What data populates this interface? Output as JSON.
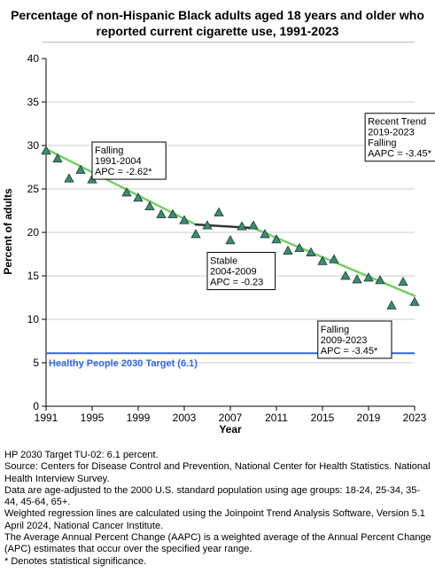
{
  "chart_data": {
    "type": "scatter",
    "title": "Percentage of non-Hispanic Black adults aged 18 years and older who reported current cigarette use, 1991-2023",
    "xlabel": "Year",
    "ylabel": "Percent of adults",
    "xlim": [
      1991,
      2023
    ],
    "ylim": [
      0,
      40
    ],
    "x_ticks": [
      1991,
      1995,
      1999,
      2003,
      2007,
      2011,
      2015,
      2019,
      2023
    ],
    "y_ticks": [
      0,
      5,
      10,
      15,
      20,
      25,
      30,
      35,
      40
    ],
    "grid": "horizontal",
    "points": [
      {
        "x": 1991,
        "y": 29.4
      },
      {
        "x": 1992,
        "y": 28.5
      },
      {
        "x": 1993,
        "y": 26.2
      },
      {
        "x": 1994,
        "y": 27.2
      },
      {
        "x": 1995,
        "y": 26.1
      },
      {
        "x": 1997,
        "y": 26.7
      },
      {
        "x": 1998,
        "y": 24.6
      },
      {
        "x": 1999,
        "y": 24.0
      },
      {
        "x": 2000,
        "y": 23.0
      },
      {
        "x": 2001,
        "y": 22.1
      },
      {
        "x": 2002,
        "y": 22.1
      },
      {
        "x": 2003,
        "y": 21.4
      },
      {
        "x": 2004,
        "y": 19.8
      },
      {
        "x": 2005,
        "y": 20.8
      },
      {
        "x": 2006,
        "y": 22.3
      },
      {
        "x": 2007,
        "y": 19.1
      },
      {
        "x": 2008,
        "y": 20.7
      },
      {
        "x": 2009,
        "y": 20.8
      },
      {
        "x": 2010,
        "y": 19.8
      },
      {
        "x": 2011,
        "y": 19.2
      },
      {
        "x": 2012,
        "y": 17.9
      },
      {
        "x": 2013,
        "y": 18.2
      },
      {
        "x": 2014,
        "y": 17.7
      },
      {
        "x": 2015,
        "y": 16.7
      },
      {
        "x": 2016,
        "y": 16.9
      },
      {
        "x": 2017,
        "y": 15.0
      },
      {
        "x": 2018,
        "y": 14.6
      },
      {
        "x": 2019,
        "y": 14.8
      },
      {
        "x": 2020,
        "y": 14.5
      },
      {
        "x": 2021,
        "y": 11.6
      },
      {
        "x": 2022,
        "y": 14.3
      },
      {
        "x": 2023,
        "y": 12.0
      }
    ],
    "trend_segments": [
      {
        "label": "Falling",
        "period": "1991-2004",
        "x": [
          1991,
          2004
        ],
        "y": [
          29.6,
          20.9
        ],
        "color": "#77cc66"
      },
      {
        "label": "Stable",
        "period": "2004-2009",
        "x": [
          2004,
          2009
        ],
        "y": [
          20.9,
          20.5
        ],
        "color": "#333333"
      },
      {
        "label": "Falling",
        "period": "2009-2023",
        "x": [
          2009,
          2023
        ],
        "y": [
          20.5,
          12.7
        ],
        "color": "#77cc66"
      }
    ],
    "target": {
      "value": 6.1,
      "label": "Healthy People 2030 Target (6.1)",
      "color": "#3366dd"
    },
    "annotations": [
      {
        "lines": [
          "Falling",
          "1991-2004",
          "APC = -2.62*"
        ],
        "anchor_x": 1995.0,
        "anchor_y": 30.4
      },
      {
        "lines": [
          "Stable",
          "2004-2009",
          "APC = -0.23"
        ],
        "anchor_x": 2005.0,
        "anchor_y": 17.7
      },
      {
        "lines": [
          "Falling",
          "2009-2023",
          "APC = -3.45*"
        ],
        "anchor_x": 2014.6,
        "anchor_y": 9.8
      },
      {
        "lines": [
          "Recent Trend",
          "2019-2023",
          "Falling",
          "AAPC = -3.45*"
        ],
        "anchor_x": 2018.7,
        "anchor_y": 33.7
      }
    ],
    "marker_color": "#3d8a76"
  },
  "notes": [
    "HP 2030 Target TU-02: 6.1 percent.",
    "Source: Centers for Disease Control and Prevention, National Center for Health Statistics. National Health Interview Survey.",
    "Data are age-adjusted to the 2000 U.S. standard population using age groups: 18-24, 25-34, 35-44, 45-64, 65+.",
    "Weighted regression lines are calculated using the Joinpoint Trend Analysis Software, Version 5.1 April 2024, National Cancer Institute.",
    "The Average Annual Percent Change (AAPC) is a weighted average of the Annual Percent Change (APC) estimates that occur over the specified year range.",
    "* Denotes statistical significance."
  ]
}
